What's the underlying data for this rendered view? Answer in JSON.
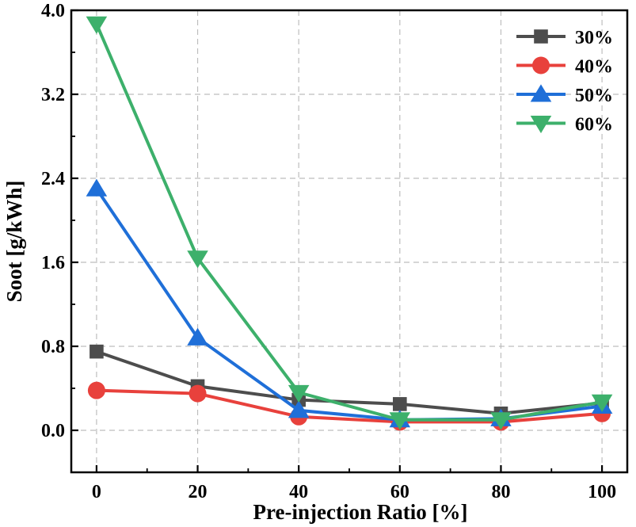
{
  "chart_data": {
    "type": "line",
    "title": "",
    "xlabel": "Pre-injection Ratio [%]",
    "ylabel": "Soot  [g/kWh]",
    "x": [
      0,
      20,
      40,
      60,
      80,
      100
    ],
    "xlim": [
      -5,
      105
    ],
    "ylim": [
      -0.4,
      4.0
    ],
    "x_ticks": [
      "0",
      "20",
      "40",
      "60",
      "80",
      "100"
    ],
    "y_ticks": [
      "0.0",
      "0.8",
      "1.6",
      "2.4",
      "3.2",
      "4.0"
    ],
    "grid": true,
    "legend_position": "top-right",
    "series": [
      {
        "name": "30%",
        "color": "#4d4d4d",
        "marker": "square",
        "values": [
          0.75,
          0.42,
          0.29,
          0.25,
          0.16,
          0.26
        ]
      },
      {
        "name": "40%",
        "color": "#e8413c",
        "marker": "circle",
        "values": [
          0.38,
          0.35,
          0.13,
          0.08,
          0.08,
          0.16
        ]
      },
      {
        "name": "50%",
        "color": "#1f6fd8",
        "marker": "triangle-up",
        "values": [
          2.3,
          0.88,
          0.19,
          0.1,
          0.11,
          0.23
        ]
      },
      {
        "name": "60%",
        "color": "#3db06b",
        "marker": "triangle-down",
        "values": [
          3.87,
          1.64,
          0.36,
          0.1,
          0.1,
          0.27
        ]
      }
    ]
  }
}
